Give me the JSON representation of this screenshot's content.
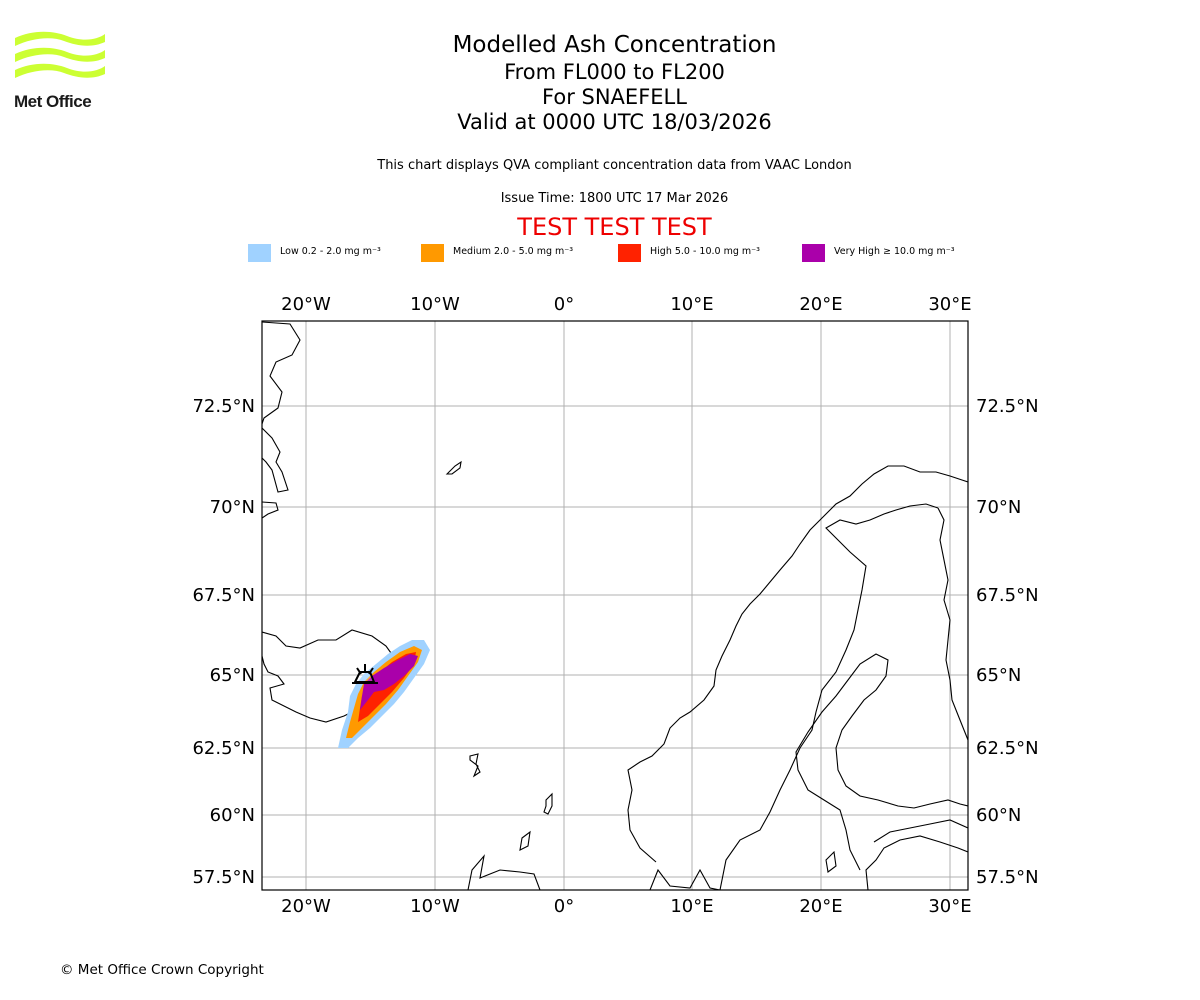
{
  "header": {
    "organisation": "Met Office",
    "title": "Modelled Ash Concentration",
    "level_range": "From FL000 to FL200",
    "volcano": "For SNAEFELL",
    "valid_time": "Valid at 0000 UTC 18/03/2026",
    "description": "This chart displays QVA compliant concentration data from VAAC London",
    "issue_time": "Issue Time: 1800 UTC 17 Mar 2026",
    "test_banner": "TEST TEST TEST"
  },
  "legend": [
    {
      "label": "Low 0.2 - 2.0 mg m⁻³",
      "color": "#a0d2ff"
    },
    {
      "label": "Medium 2.0 - 5.0 mg m⁻³",
      "color": "#ff9900"
    },
    {
      "label": "High 5.0 - 10.0 mg m⁻³",
      "color": "#ff2200"
    },
    {
      "label": "Very High ≥ 10.0 mg m⁻³",
      "color": "#aa00aa"
    }
  ],
  "map": {
    "lon_ticks": [
      "20°W",
      "10°W",
      "0°",
      "10°E",
      "20°E",
      "30°E"
    ],
    "lat_ticks": [
      "72.5°N",
      "70°N",
      "67.5°N",
      "65°N",
      "62.5°N",
      "60°N",
      "57.5°N"
    ],
    "grid_color": "#b0b0b0"
  },
  "footer": {
    "copyright": "© Met Office Crown Copyright"
  }
}
